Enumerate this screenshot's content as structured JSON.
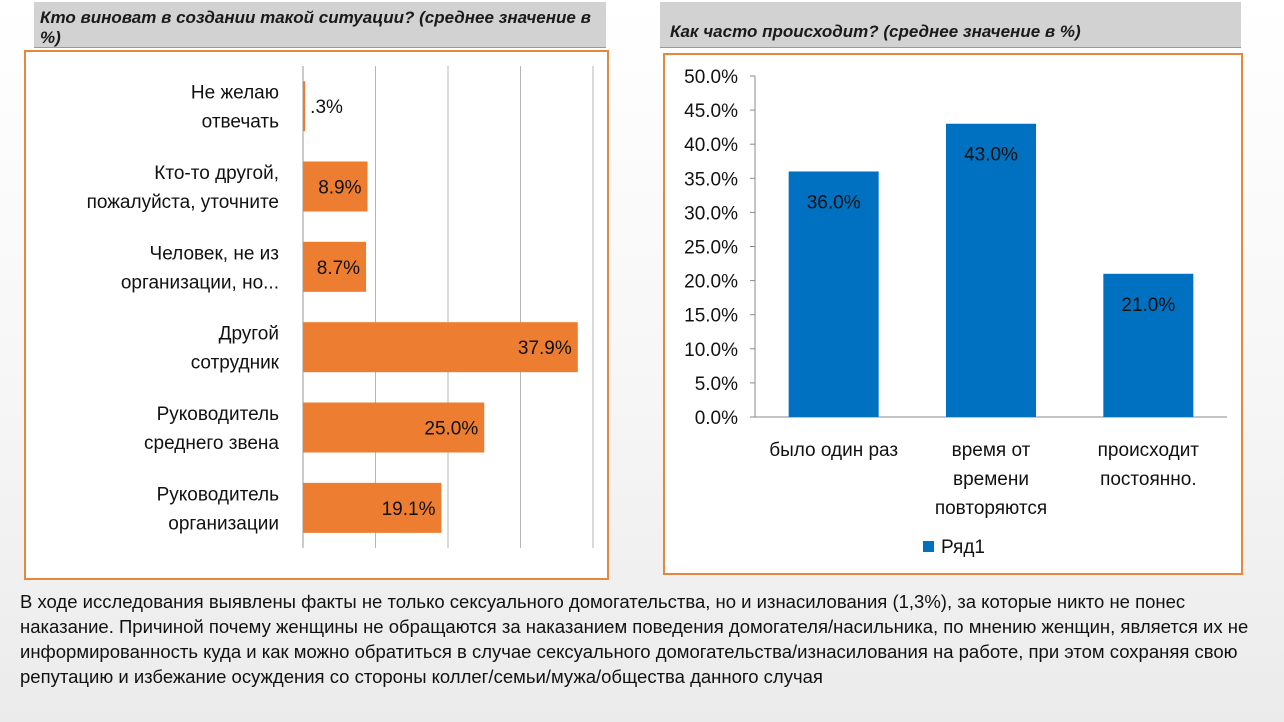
{
  "colors": {
    "bar_orange": "#ed7d31",
    "bar_blue": "#0070c0",
    "panel_border": "#e38840",
    "header_bg": "#d2d2d2"
  },
  "chart_data": [
    {
      "type": "bar",
      "orientation": "horizontal",
      "title": "Кто виноват в создании такой ситуации? (среднее значение в %)",
      "categories": [
        [
          "Не желаю",
          "отвечать"
        ],
        [
          "Кто-то другой,",
          "пожалуйста, уточните"
        ],
        [
          "Человек, не из",
          "организации, но..."
        ],
        [
          "Другой",
          "сотрудник"
        ],
        [
          "Руководитель",
          "среднего звена"
        ],
        [
          "Руководитель",
          "организации"
        ]
      ],
      "values": [
        0.3,
        8.9,
        8.7,
        37.9,
        25.0,
        19.1
      ],
      "value_labels": [
        ".3%",
        "8.9%",
        "8.7%",
        "37.9%",
        "25.0%",
        "19.1%"
      ],
      "xlim": [
        0,
        40
      ],
      "grid": true
    },
    {
      "type": "bar",
      "orientation": "vertical",
      "title": "Как часто происходит? (среднее значение в %)",
      "categories": [
        [
          "было один раз"
        ],
        [
          "время от",
          "времени",
          "повторяются"
        ],
        [
          "происходит",
          "постоянно."
        ]
      ],
      "series": [
        {
          "name": "Ряд1",
          "values": [
            36.0,
            43.0,
            21.0
          ]
        }
      ],
      "value_labels": [
        "36.0%",
        "43.0%",
        "21.0%"
      ],
      "y_ticks": [
        "0.0%",
        "5.0%",
        "10.0%",
        "15.0%",
        "20.0%",
        "25.0%",
        "30.0%",
        "35.0%",
        "40.0%",
        "45.0%",
        "50.0%"
      ],
      "ylim": [
        0,
        50
      ],
      "grid": false,
      "legend_position": "bottom"
    }
  ],
  "caption": "В ходе исследования выявлены факты не только сексуального домогательства, но и изнасилования (1,3%), за которые никто не понес наказание. Причиной почему женщины не обращаются за наказанием  поведения домогателя/насильника, по мнению женщин, является их не информированность куда и как можно обратиться в случае сексуального домогательства/изнасилования  на работе, при этом сохраняя свою репутацию и избежание  осуждения со стороны коллег/семьи/мужа/общества данного случая"
}
